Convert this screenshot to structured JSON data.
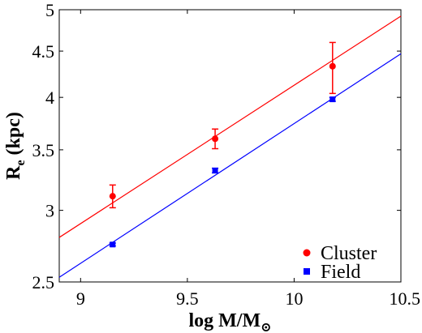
{
  "chart_data": {
    "type": "scatter",
    "xlabel": {
      "main": "log M/M",
      "sub": "⊙"
    },
    "ylabel": {
      "main": "R",
      "sub": "e",
      "rest": " (kpc)"
    },
    "xlim": [
      8.9,
      10.5
    ],
    "ylim": [
      2.5,
      5
    ],
    "y_scale": "log",
    "x_ticks": [
      9,
      9.5,
      10,
      10.5
    ],
    "x_tick_labels": [
      "9",
      "9.5",
      "10",
      "10.5"
    ],
    "y_ticks": [
      2.5,
      3,
      3.5,
      4,
      4.5,
      5
    ],
    "y_tick_labels": [
      "2.5",
      "3",
      "3.5",
      "4",
      "4.5",
      "5"
    ],
    "grid": false,
    "legend_position": "bottom-right",
    "series": [
      {
        "name": "Cluster",
        "color": "#ff0000",
        "marker": "circle",
        "x": [
          9.15,
          9.63,
          10.18
        ],
        "y": [
          3.11,
          3.6,
          4.33
        ],
        "y_low": [
          3.02,
          3.51,
          4.04
        ],
        "y_high": [
          3.2,
          3.69,
          4.6
        ],
        "fit": {
          "x": [
            8.9,
            10.5
          ],
          "y": [
            2.8,
            4.92
          ]
        }
      },
      {
        "name": "Field",
        "color": "#0000ff",
        "marker": "square",
        "x": [
          9.15,
          9.63,
          10.18
        ],
        "y": [
          2.75,
          3.32,
          3.98
        ],
        "y_low": [
          2.74,
          3.3,
          3.96
        ],
        "y_high": [
          2.76,
          3.34,
          4.0
        ],
        "fit": {
          "x": [
            8.9,
            10.5
          ],
          "y": [
            2.53,
            4.47
          ]
        }
      }
    ]
  }
}
